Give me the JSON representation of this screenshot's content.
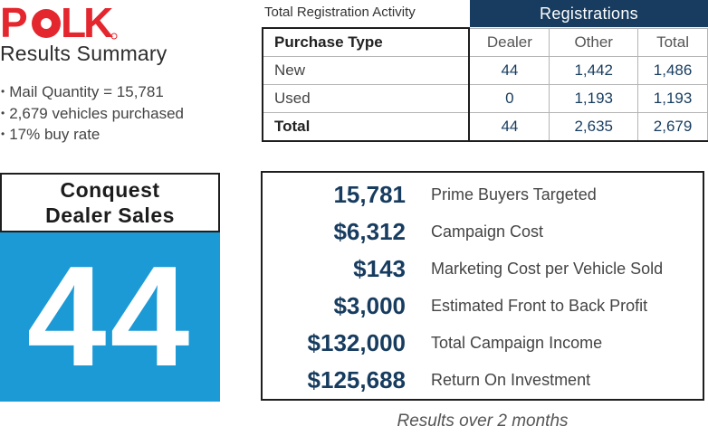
{
  "logo": {
    "text": "POLK",
    "color": "#e4262e"
  },
  "summary": {
    "title": "Results Summary",
    "bullets": [
      "Mail Quantity = 15,781",
      "2,679 vehicles purchased",
      "17% buy rate"
    ]
  },
  "conquest": {
    "line1": "Conquest",
    "line2": "Dealer Sales",
    "value": "44",
    "color": "#1b9ad6"
  },
  "registration": {
    "caption": "Total Registration Activity",
    "header": "Registrations",
    "header_color": "#173c5f",
    "columns": [
      "Purchase Type",
      "Dealer",
      "Other",
      "Total"
    ],
    "rows": [
      {
        "type": "New",
        "dealer": "44",
        "other": "1,442",
        "total": "1,486"
      },
      {
        "type": "Used",
        "dealer": "0",
        "other": "1,193",
        "total": "1,193"
      },
      {
        "type": "Total",
        "dealer": "44",
        "other": "2,635",
        "total": "2,679"
      }
    ]
  },
  "metrics": [
    {
      "value": "15,781",
      "label": "Prime Buyers Targeted"
    },
    {
      "value": "$6,312",
      "label": "Campaign Cost"
    },
    {
      "value": "$143",
      "label": "Marketing Cost per Vehicle Sold"
    },
    {
      "value": "$3,000",
      "label": "Estimated Front to Back Profit"
    },
    {
      "value": "$132,000",
      "label": "Total Campaign Income"
    },
    {
      "value": "$125,688",
      "label": "Return On Investment"
    }
  ],
  "footnote": "Results over 2 months"
}
